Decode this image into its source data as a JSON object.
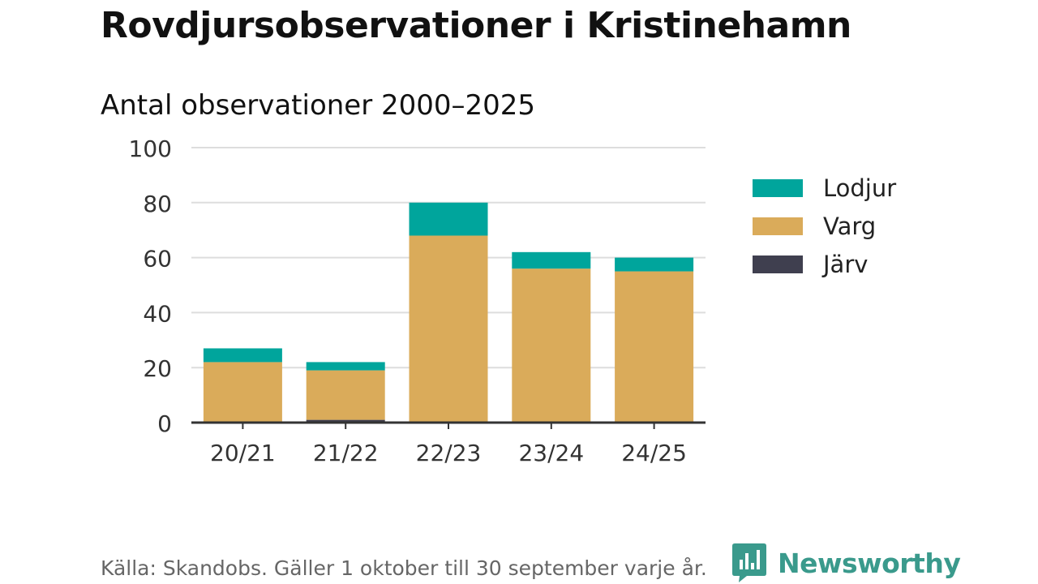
{
  "title": "Rovdjursobservationer i Kristinehamn",
  "subtitle": "Antal observationer 2000–2025",
  "source": "Källa: Skandobs. Gäller 1 oktober till 30 september varje år.",
  "brand": {
    "name": "Newsworthy",
    "icon": "newsworthy-logo-icon",
    "color": "#3a9a8c"
  },
  "chart_data": {
    "type": "bar",
    "stacked": true,
    "categories": [
      "20/21",
      "21/22",
      "22/23",
      "23/24",
      "24/25"
    ],
    "series": [
      {
        "name": "Järv",
        "color": "#3f3f4f",
        "values": [
          0,
          1,
          0,
          0,
          0
        ]
      },
      {
        "name": "Varg",
        "color": "#daab5a",
        "values": [
          22,
          18,
          68,
          56,
          55
        ]
      },
      {
        "name": "Lodjur",
        "color": "#00a59c",
        "values": [
          5,
          3,
          12,
          6,
          5
        ]
      }
    ],
    "ylim": [
      0,
      100
    ],
    "yticks": [
      0,
      20,
      40,
      60,
      80,
      100
    ],
    "grid": true,
    "legend_position": "right",
    "legend_order": [
      "Lodjur",
      "Varg",
      "Järv"
    ]
  }
}
